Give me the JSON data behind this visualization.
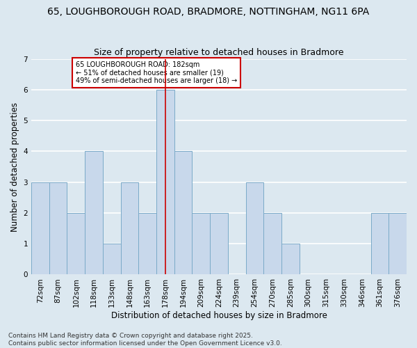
{
  "title1": "65, LOUGHBOROUGH ROAD, BRADMORE, NOTTINGHAM, NG11 6PA",
  "title2": "Size of property relative to detached houses in Bradmore",
  "xlabel": "Distribution of detached houses by size in Bradmore",
  "ylabel": "Number of detached properties",
  "bins": [
    "72sqm",
    "87sqm",
    "102sqm",
    "118sqm",
    "133sqm",
    "148sqm",
    "163sqm",
    "178sqm",
    "194sqm",
    "209sqm",
    "224sqm",
    "239sqm",
    "254sqm",
    "270sqm",
    "285sqm",
    "300sqm",
    "315sqm",
    "330sqm",
    "346sqm",
    "361sqm",
    "376sqm"
  ],
  "values": [
    3,
    3,
    2,
    4,
    1,
    3,
    2,
    6,
    4,
    2,
    2,
    0,
    3,
    2,
    1,
    0,
    0,
    0,
    0,
    2,
    2
  ],
  "highlight_bin_index": 7,
  "bar_color": "#c8d8eb",
  "bar_edge_color": "#7aaac8",
  "line_color": "#cc0000",
  "annotation_text": "65 LOUGHBOROUGH ROAD: 182sqm\n← 51% of detached houses are smaller (19)\n49% of semi-detached houses are larger (18) →",
  "annotation_box_color": "white",
  "annotation_border_color": "#cc0000",
  "ylim": [
    0,
    7
  ],
  "yticks": [
    0,
    1,
    2,
    3,
    4,
    5,
    6,
    7
  ],
  "footer_line1": "Contains HM Land Registry data © Crown copyright and database right 2025.",
  "footer_line2": "Contains public sector information licensed under the Open Government Licence v3.0.",
  "bg_color": "#dce8f0",
  "grid_color": "#ffffff",
  "title1_fontsize": 10,
  "title2_fontsize": 9,
  "axis_label_fontsize": 8.5,
  "tick_fontsize": 7.5,
  "footer_fontsize": 6.5
}
